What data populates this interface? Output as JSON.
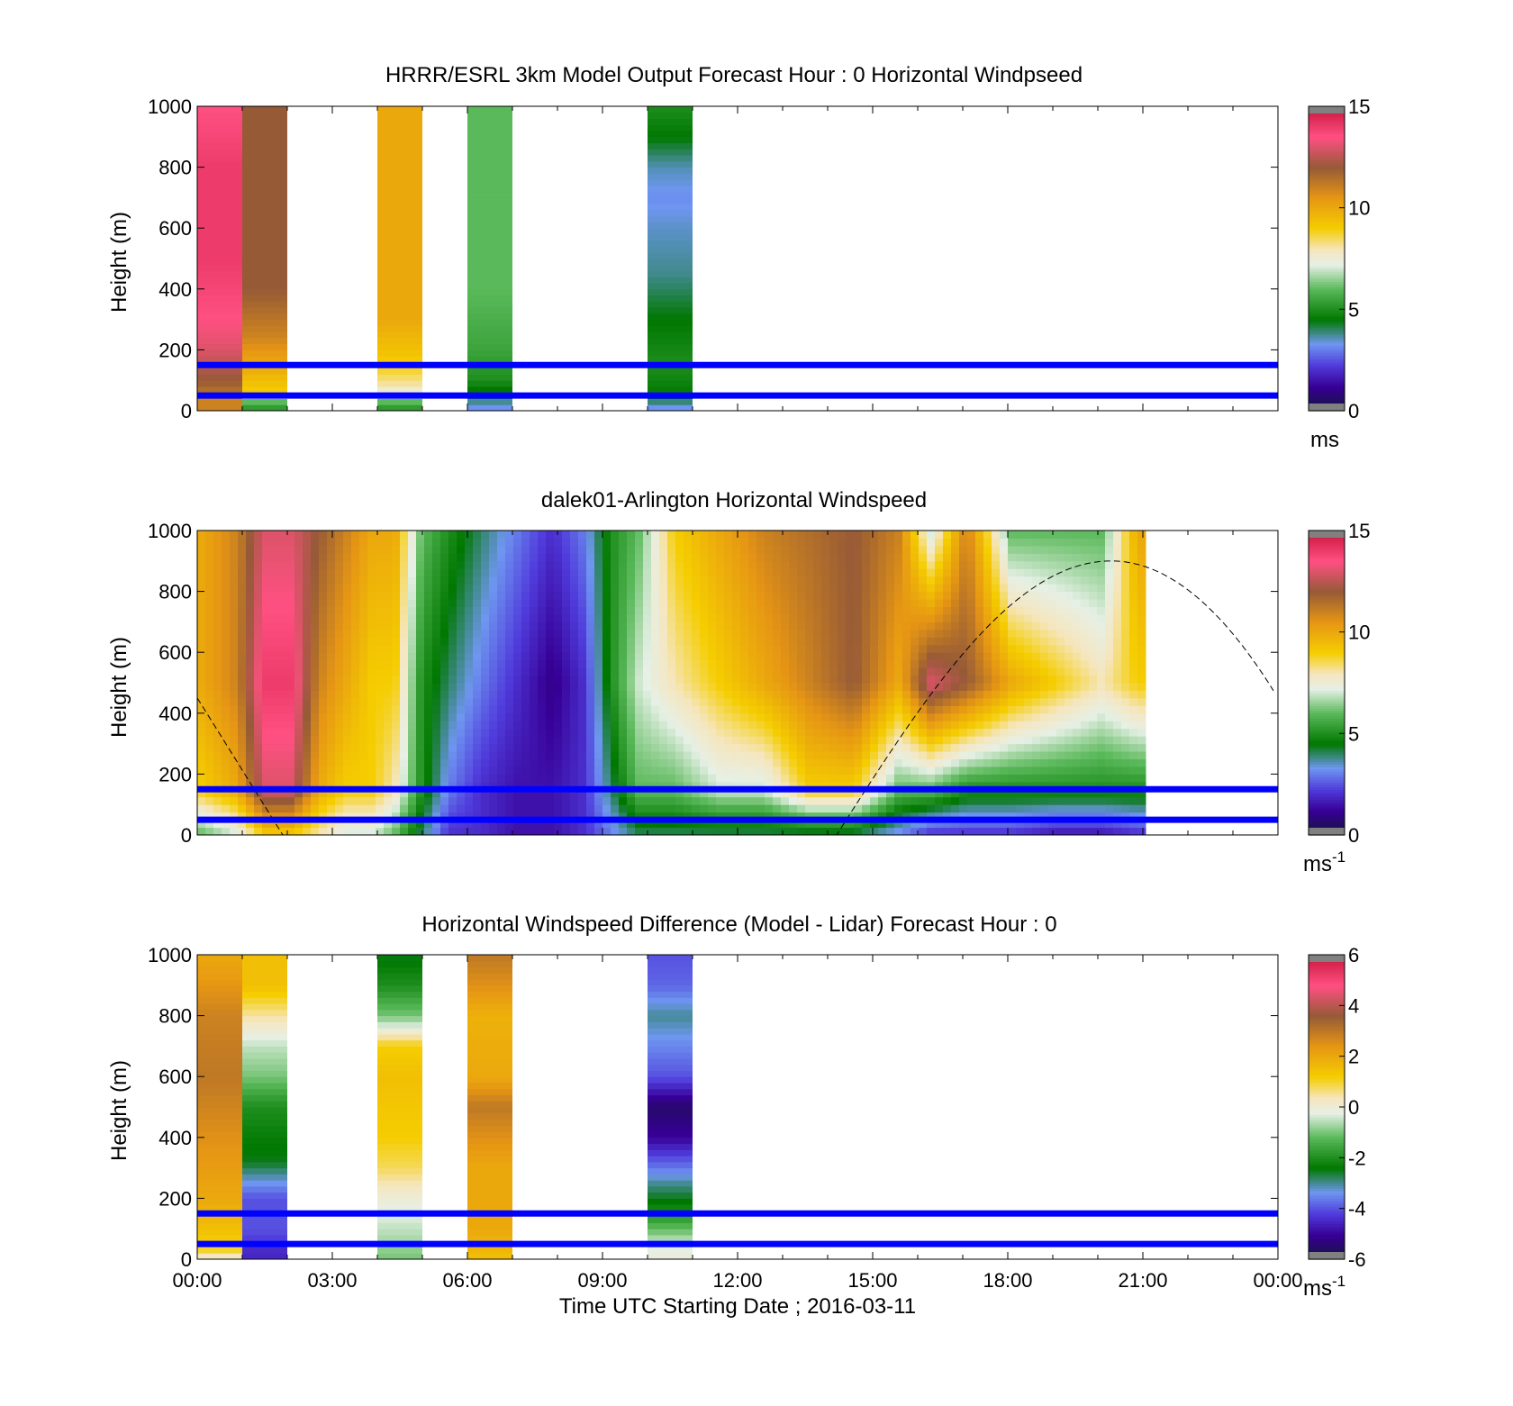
{
  "colors": {
    "overlay_line": "#0000ff",
    "no_data": "#ffffff"
  },
  "xaxis": {
    "ticks": [
      "00:00",
      "03:00",
      "06:00",
      "09:00",
      "12:00",
      "15:00",
      "18:00",
      "21:00",
      "00:00"
    ],
    "label": "Time UTC  Starting Date ; 2016-03-11"
  },
  "chart_data": [
    {
      "type": "heatmap",
      "title": "HRRR/ESRL 3km Model Output   Forecast Hour : 0 Horizontal Windpseed",
      "ylabel": "Height (m)",
      "ylim": [
        0,
        1000
      ],
      "yticks": [
        "0",
        "200",
        "400",
        "600",
        "800",
        "1000"
      ],
      "xlim_hours": [
        0,
        24
      ],
      "colorbar": {
        "min": 0,
        "max": 15,
        "ticks": [
          "0",
          "5",
          "10",
          "15"
        ],
        "unit": "ms"
      },
      "overlay_heights_m": [
        50,
        150
      ],
      "columns": [
        {
          "start_h": 0,
          "end_h": 1,
          "profile": [
            [
              0,
              11
            ],
            [
              40,
              11
            ],
            [
              100,
              12
            ],
            [
              200,
              13
            ],
            [
              300,
              13.5
            ],
            [
              500,
              14
            ],
            [
              800,
              14
            ],
            [
              1000,
              13.5
            ]
          ]
        },
        {
          "start_h": 1,
          "end_h": 2,
          "profile": [
            [
              0,
              5
            ],
            [
              30,
              6
            ],
            [
              60,
              9
            ],
            [
              150,
              10
            ],
            [
              250,
              11
            ],
            [
              400,
              12
            ],
            [
              1000,
              12
            ]
          ]
        },
        {
          "start_h": 4,
          "end_h": 5,
          "profile": [
            [
              0,
              5
            ],
            [
              30,
              6
            ],
            [
              80,
              8
            ],
            [
              150,
              9
            ],
            [
              300,
              10
            ],
            [
              1000,
              10
            ]
          ]
        },
        {
          "start_h": 6,
          "end_h": 7,
          "profile": [
            [
              0,
              3
            ],
            [
              40,
              4
            ],
            [
              100,
              5
            ],
            [
              200,
              5.5
            ],
            [
              400,
              6
            ],
            [
              600,
              6
            ],
            [
              1000,
              6
            ]
          ]
        },
        {
          "start_h": 10,
          "end_h": 11,
          "profile": [
            [
              0,
              3
            ],
            [
              50,
              4.5
            ],
            [
              150,
              5
            ],
            [
              300,
              4.5
            ],
            [
              450,
              3.8
            ],
            [
              600,
              3.5
            ],
            [
              700,
              3.2
            ],
            [
              800,
              3.6
            ],
            [
              900,
              4.5
            ],
            [
              1000,
              5
            ]
          ]
        }
      ]
    },
    {
      "type": "heatmap",
      "title": "dalek01-Arlington  Horizontal Windspeed",
      "ylabel": "Height (m)",
      "ylim": [
        0,
        1000
      ],
      "yticks": [
        "0",
        "200",
        "400",
        "600",
        "800",
        "1000"
      ],
      "xlim_hours": [
        0,
        24
      ],
      "colorbar": {
        "min": 0,
        "max": 15,
        "ticks": [
          "0",
          "5",
          "10",
          "15"
        ],
        "unit": "ms",
        "unit_sup": "-1"
      },
      "overlay_heights_m": [
        50,
        150
      ],
      "boundary_layer_curve": {
        "start_h": 0,
        "end_h": 24,
        "height_m": [
          450,
          900
        ],
        "peak_h": 20.3,
        "trough_h": [
          1.9,
          14.2
        ]
      },
      "time_slices": [
        {
          "h": 0.0,
          "surface": 6,
          "low": 9,
          "mid": 10,
          "high": 10
        },
        {
          "h": 0.8,
          "surface": 7,
          "low": 10,
          "mid": 11,
          "high": 11
        },
        {
          "h": 1.4,
          "surface": 9,
          "low": 13,
          "mid": 14,
          "high": 13
        },
        {
          "h": 2.0,
          "surface": 9,
          "low": 13,
          "mid": 14,
          "high": 13
        },
        {
          "h": 2.6,
          "surface": 8,
          "low": 10,
          "mid": 11,
          "high": 12
        },
        {
          "h": 3.2,
          "surface": 7,
          "low": 9,
          "mid": 10,
          "high": 11
        },
        {
          "h": 3.8,
          "surface": 7,
          "low": 9,
          "mid": 9,
          "high": 10
        },
        {
          "h": 4.3,
          "surface": 6,
          "low": 8,
          "mid": 9,
          "high": 10
        },
        {
          "h": 4.9,
          "surface": 4,
          "low": 5,
          "mid": 5,
          "high": 6
        },
        {
          "h": 5.5,
          "surface": 2,
          "low": 3,
          "mid": 4,
          "high": 5
        },
        {
          "h": 6.2,
          "surface": 2,
          "low": 2,
          "mid": 3,
          "high": 4
        },
        {
          "h": 7.0,
          "surface": 1.5,
          "low": 1.5,
          "mid": 2,
          "high": 3
        },
        {
          "h": 7.8,
          "surface": 1.5,
          "low": 1.5,
          "mid": 1,
          "high": 2
        },
        {
          "h": 8.5,
          "surface": 2,
          "low": 2,
          "mid": 2,
          "high": 3
        },
        {
          "h": 9.1,
          "surface": 3,
          "low": 4,
          "mid": 5,
          "high": 5
        },
        {
          "h": 9.7,
          "surface": 4,
          "low": 6,
          "mid": 7,
          "high": 6
        },
        {
          "h": 10.5,
          "surface": 4,
          "low": 6,
          "mid": 8,
          "high": 9
        },
        {
          "h": 11.5,
          "surface": 4,
          "low": 7,
          "mid": 9,
          "high": 10
        },
        {
          "h": 12.5,
          "surface": 4,
          "low": 7,
          "mid": 10,
          "high": 11
        },
        {
          "h": 13.5,
          "surface": 4,
          "low": 9,
          "mid": 11,
          "high": 11.5
        },
        {
          "h": 14.5,
          "surface": 4,
          "low": 9,
          "mid": 12,
          "high": 12
        },
        {
          "h": 15.5,
          "surface": 3,
          "low": 6,
          "mid": 10,
          "high": 11
        },
        {
          "h": 16.2,
          "surface": 2,
          "low": 6,
          "mid": 13,
          "high": 7
        },
        {
          "h": 17.0,
          "surface": 2,
          "low": 5,
          "mid": 12,
          "high": 11
        },
        {
          "h": 18.0,
          "surface": 2,
          "low": 5,
          "mid": 10,
          "high": 6
        },
        {
          "h": 19.0,
          "surface": 1.5,
          "low": 5,
          "mid": 9,
          "high": 6
        },
        {
          "h": 20.0,
          "surface": 1.5,
          "low": 5,
          "mid": 8,
          "high": 6
        },
        {
          "h": 20.8,
          "surface": 2,
          "low": 5,
          "mid": 9,
          "high": 10
        }
      ],
      "data_end_h": 20.9
    },
    {
      "type": "heatmap",
      "title": "Horizontal Windspeed Difference (Model - Lidar) Forecast Hour : 0",
      "xlabel": "Time UTC  Starting Date ; 2016-03-11",
      "ylabel": "Height (m)",
      "ylim": [
        0,
        1000
      ],
      "yticks": [
        "0",
        "200",
        "400",
        "600",
        "800",
        "1000"
      ],
      "xlim_hours": [
        0,
        24
      ],
      "colorbar": {
        "min": -6,
        "max": 6,
        "ticks": [
          "-6",
          "-4",
          "-2",
          "0",
          "2",
          "4",
          "6"
        ],
        "unit": "ms",
        "unit_sup": "-1"
      },
      "overlay_heights_m": [
        50,
        150
      ],
      "columns": [
        {
          "start_h": 0,
          "end_h": 1,
          "top_m": 1000,
          "profile": [
            [
              0,
              0
            ],
            [
              30,
              1
            ],
            [
              100,
              1.5
            ],
            [
              200,
              2
            ],
            [
              400,
              2.5
            ],
            [
              600,
              3
            ],
            [
              800,
              2.8
            ],
            [
              1000,
              2
            ]
          ]
        },
        {
          "start_h": 1,
          "end_h": 2,
          "top_m": 1000,
          "split_m": 320,
          "profile": [
            [
              20,
              -4.5
            ],
            [
              100,
              -4
            ],
            [
              200,
              -4
            ],
            [
              320,
              -2.5
            ],
            [
              400,
              -2.3
            ],
            [
              500,
              -2
            ],
            [
              600,
              -1
            ],
            [
              700,
              -0.5
            ],
            [
              800,
              0.5
            ],
            [
              900,
              1.5
            ],
            [
              1000,
              1.5
            ]
          ]
        },
        {
          "start_h": 4,
          "end_h": 5,
          "top_m": 1000,
          "profile": [
            [
              0,
              -1
            ],
            [
              100,
              -0.5
            ],
            [
              200,
              0
            ],
            [
              300,
              0.8
            ],
            [
              400,
              1.2
            ],
            [
              600,
              1.5
            ],
            [
              700,
              1.2
            ],
            [
              750,
              0
            ],
            [
              800,
              -1
            ],
            [
              850,
              -1.5
            ],
            [
              900,
              -2
            ],
            [
              1000,
              -2.5
            ]
          ]
        },
        {
          "start_h": 6,
          "end_h": 7,
          "top_m": 1000,
          "profile": [
            [
              0,
              1.5
            ],
            [
              100,
              2
            ],
            [
              300,
              2
            ],
            [
              400,
              2.5
            ],
            [
              500,
              3
            ],
            [
              600,
              2
            ],
            [
              800,
              1.8
            ],
            [
              900,
              2.5
            ],
            [
              1000,
              3
            ]
          ]
        },
        {
          "start_h": 10,
          "end_h": 11,
          "top_m": 1000,
          "profile": [
            [
              0,
              0
            ],
            [
              60,
              -0.5
            ],
            [
              150,
              -2
            ],
            [
              250,
              -3
            ],
            [
              330,
              -4
            ],
            [
              400,
              -5
            ],
            [
              500,
              -5.5
            ],
            [
              600,
              -4
            ],
            [
              700,
              -3.5
            ],
            [
              800,
              -3
            ],
            [
              900,
              -3.8
            ],
            [
              1000,
              -4
            ]
          ]
        }
      ]
    }
  ]
}
